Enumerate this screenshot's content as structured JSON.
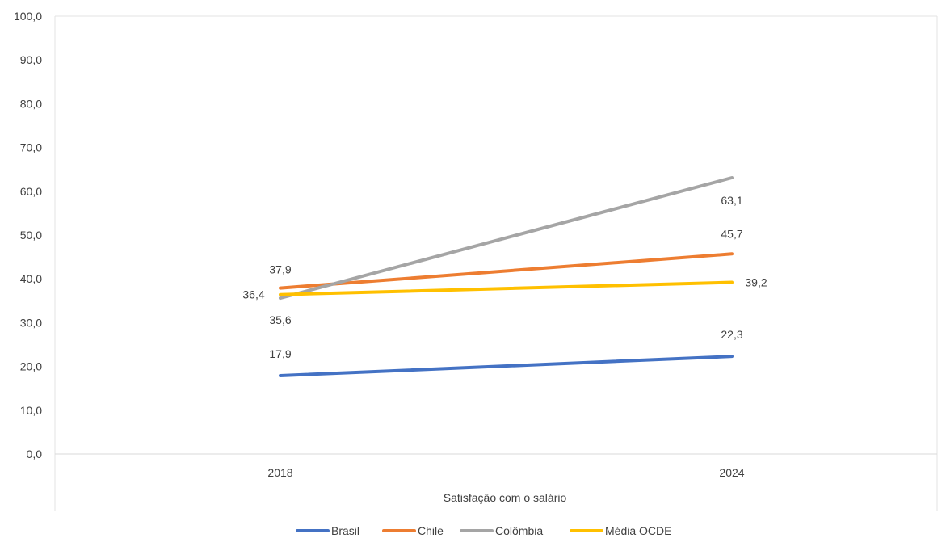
{
  "chart_data": {
    "type": "line",
    "title": "",
    "xlabel": "Satisfação com o salário",
    "ylabel": "",
    "categories": [
      "2018",
      "2024"
    ],
    "ylim": [
      0,
      100
    ],
    "yticks": [
      "0,0",
      "10,0",
      "20,0",
      "30,0",
      "40,0",
      "50,0",
      "60,0",
      "70,0",
      "80,0",
      "90,0",
      "100,0"
    ],
    "grid": false,
    "legend_position": "bottom",
    "series": [
      {
        "name": "Brasil",
        "color": "#4472C4",
        "values": [
          17.9,
          22.3
        ],
        "labels": [
          "17,9",
          "22,3"
        ]
      },
      {
        "name": "Chile",
        "color": "#ED7D31",
        "values": [
          37.9,
          45.7
        ],
        "labels": [
          "37,9",
          "45,7"
        ]
      },
      {
        "name": "Colômbia",
        "color": "#A5A5A5",
        "values": [
          35.6,
          63.1
        ],
        "labels": [
          "35,6",
          "63,1"
        ]
      },
      {
        "name": "Média OCDE",
        "color": "#FFC000",
        "values": [
          36.4,
          39.2
        ],
        "labels": [
          "36,4",
          "39,2"
        ]
      }
    ]
  }
}
